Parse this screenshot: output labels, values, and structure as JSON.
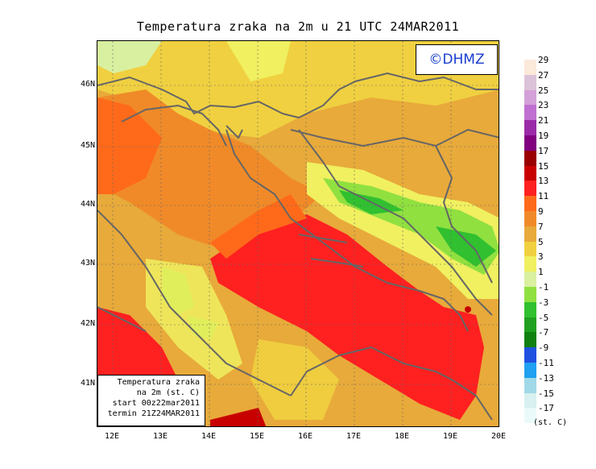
{
  "title": "Temperatura zraka na 2m u 21 UTC 24MAR2011",
  "watermark": "©DHMZ",
  "infobox": {
    "line1": "Temperatura zraka",
    "line2": "na 2m (st. C)",
    "line3": "start 00z22mar2011",
    "line4": "termin 21Z24MAR2011"
  },
  "lat_labels": [
    "46N",
    "45N",
    "44N",
    "43N",
    "42N",
    "41N"
  ],
  "lon_labels": [
    "12E",
    "13E",
    "14E",
    "15E",
    "16E",
    "17E",
    "18E",
    "19E",
    "20E"
  ],
  "legend": {
    "labels": [
      "29",
      "27",
      "25",
      "23",
      "21",
      "19",
      "17",
      "15",
      "13",
      "11",
      "9",
      "7",
      "5",
      "3",
      "1",
      "-1",
      "-3",
      "-5",
      "-7",
      "-9",
      "-11",
      "-13",
      "-15",
      "-17"
    ],
    "colors": [
      "#fbe9da",
      "#dcc2d8",
      "#d4a0d8",
      "#c070d0",
      "#9a2aa8",
      "#800080",
      "#9a0000",
      "#c80000",
      "#ff2020",
      "#ff6a1a",
      "#f08a28",
      "#e8aa3a",
      "#f0d040",
      "#f0f060",
      "#d8f0a0",
      "#90e040",
      "#30c030",
      "#20a020",
      "#108010",
      "#2050e0",
      "#20a0f0",
      "#a0d8e8",
      "#d8f0f0",
      "#eafafa"
    ],
    "unit": "(st. C)"
  }
}
